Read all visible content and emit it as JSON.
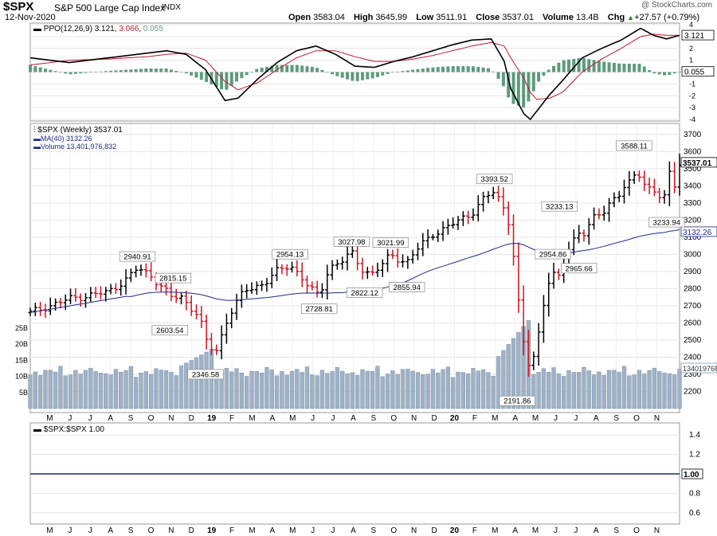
{
  "header": {
    "symbol": "$SPX",
    "name": "S&P 500 Large Cap Index",
    "exchange": "INDX",
    "date": "12-Nov-2020",
    "watermark": "@ StockCharts.com",
    "ohlc": [
      {
        "label": "Open",
        "value": "3583.04"
      },
      {
        "label": "High",
        "value": "3645.99"
      },
      {
        "label": "Low",
        "value": "3511.91"
      },
      {
        "label": "Close",
        "value": "3537.01"
      },
      {
        "label": "Volume",
        "value": "13.4B"
      },
      {
        "label": "Chg",
        "value": "+27.57 (+0.79%)"
      }
    ],
    "chg_icon": "up-triangle-icon"
  },
  "ppo_panel": {
    "legend_name": "PPO(12,26,9)",
    "legend_ppo": "3.121",
    "legend_signal": "3.066",
    "legend_hist": "0.055",
    "colors": {
      "ppo": "#000000",
      "signal": "#c0182e",
      "hist": "#5e9a7d"
    }
  },
  "price_panel": {
    "legend_main": "$SPX (Weekly) 3537.01",
    "legend_ma": "MA(40) 3132.26",
    "legend_volume": "Volume 13,401,976,832",
    "colors": {
      "up_bar": "#000000",
      "down_bar": "#d0131f",
      "ma": "#1f2a8a",
      "volume": "#9fb2c6"
    }
  },
  "ratio_panel": {
    "legend": "$SPX:$SPX 1.00",
    "value_tag": "1.00",
    "axis_ticks": [
      "1.4",
      "1.2",
      "1.0",
      "0.8",
      "0.6"
    ],
    "line_color": "#1f2a5e"
  },
  "x_axis_labels": [
    "M",
    "J",
    "J",
    "A",
    "S",
    "O",
    "N",
    "D",
    "19",
    "F",
    "M",
    "A",
    "M",
    "J",
    "J",
    "A",
    "S",
    "O",
    "N",
    "D",
    "20",
    "F",
    "M",
    "A",
    "M",
    "J",
    "J",
    "A",
    "S",
    "O",
    "N"
  ],
  "chart_data": [
    {
      "type": "line",
      "title": "PPO(12,26,9)",
      "ylim": [
        -4,
        4
      ],
      "y_ticks": [
        "4",
        "3",
        "2",
        "1",
        "0",
        "-1",
        "-2",
        "-3",
        "-4"
      ],
      "value_tags": {
        "ppo": "3.121",
        "hist": "0.055"
      },
      "series": [
        {
          "name": "PPO(12,26,9)",
          "x_pct": [
            0,
            6,
            12,
            18,
            21,
            24,
            27,
            30,
            32,
            35,
            38,
            41,
            44,
            47,
            50,
            53,
            56,
            59,
            62,
            65,
            68,
            71,
            73,
            74,
            76,
            77,
            78,
            80,
            82,
            85,
            88,
            91,
            94,
            96,
            98,
            100
          ],
          "values": [
            1.2,
            0.8,
            1.2,
            1.6,
            1.8,
            1.5,
            0.2,
            -2.4,
            -2.2,
            -0.6,
            0.8,
            1.8,
            2.2,
            1.5,
            0.5,
            0.4,
            0.9,
            1.3,
            1.8,
            2.3,
            2.7,
            2.8,
            0.9,
            -1.4,
            -3.5,
            -4.0,
            -3.3,
            -1.9,
            -0.7,
            1.2,
            2.0,
            2.7,
            3.7,
            3.1,
            2.8,
            3.1
          ]
        },
        {
          "name": "Signal",
          "x_pct": [
            0,
            6,
            12,
            18,
            21,
            24,
            27,
            30,
            32,
            35,
            38,
            41,
            44,
            47,
            50,
            53,
            56,
            59,
            62,
            65,
            68,
            71,
            73,
            74,
            76,
            77,
            78,
            80,
            82,
            85,
            88,
            91,
            94,
            96,
            98,
            100
          ],
          "values": [
            0.6,
            1.0,
            1.1,
            1.3,
            1.5,
            1.6,
            1.0,
            -0.8,
            -1.5,
            -0.9,
            0.2,
            1.2,
            1.8,
            1.8,
            1.3,
            0.9,
            0.9,
            1.1,
            1.4,
            1.8,
            2.2,
            2.5,
            2.2,
            1.2,
            -0.5,
            -1.7,
            -2.3,
            -2.2,
            -1.7,
            0.0,
            1.1,
            2.0,
            3.0,
            3.2,
            3.1,
            3.1
          ]
        }
      ]
    },
    {
      "type": "bar",
      "title": "$SPX (Weekly)",
      "ylim": [
        2100,
        3750
      ],
      "y_ticks": [
        3700,
        3600,
        3500,
        3400,
        3300,
        3200,
        3100,
        3000,
        2900,
        2800,
        2700,
        2600,
        2500,
        2400,
        2300,
        2200
      ],
      "volume_ticks": [
        "25B",
        "20B",
        "15B",
        "10B",
        "5B"
      ],
      "value_tags": {
        "close": "3537.01",
        "ma": "3132.26",
        "volume": "13401976832"
      },
      "annotations": [
        {
          "label": "2940.91",
          "x_pct": 16.5,
          "value": 2940.91
        },
        {
          "label": "2815.15",
          "x_pct": 22.0,
          "value": 2815.15
        },
        {
          "label": "2603.54",
          "x_pct": 21.5,
          "value": 2603.54
        },
        {
          "label": "2346.58",
          "x_pct": 27.0,
          "value": 2346.58
        },
        {
          "label": "2954.13",
          "x_pct": 40.0,
          "value": 2954.13
        },
        {
          "label": "2728.81",
          "x_pct": 44.5,
          "value": 2728.81
        },
        {
          "label": "3027.98",
          "x_pct": 49.5,
          "value": 3027.98
        },
        {
          "label": "2822.12",
          "x_pct": 51.5,
          "value": 2822.12
        },
        {
          "label": "3021.99",
          "x_pct": 55.5,
          "value": 3021.99
        },
        {
          "label": "2855.94",
          "x_pct": 58.0,
          "value": 2855.94
        },
        {
          "label": "3393.52",
          "x_pct": 71.5,
          "value": 3393.52
        },
        {
          "label": "2191.86",
          "x_pct": 75.0,
          "value": 2191.86
        },
        {
          "label": "3233.13",
          "x_pct": 81.5,
          "value": 3233.13
        },
        {
          "label": "2954.86",
          "x_pct": 80.5,
          "value": 2954.86
        },
        {
          "label": "2965.66",
          "x_pct": 84.5,
          "value": 2965.66
        },
        {
          "label": "3588.11",
          "x_pct": 93.0,
          "value": 3588.11
        },
        {
          "label": "3233.94",
          "x_pct": 98.0,
          "value": 3233.94
        }
      ],
      "price_anchors": {
        "x_pct": [
          0,
          3,
          6,
          9,
          12,
          15,
          16.5,
          18.5,
          20.5,
          22,
          23,
          24.5,
          26,
          27,
          28.5,
          30.5,
          33,
          36,
          38,
          40,
          41.5,
          43,
          44.5,
          46,
          48,
          49.5,
          51,
          52.5,
          54,
          55.5,
          56.5,
          58,
          60,
          62,
          64,
          66,
          68,
          70,
          71.5,
          72.5,
          73.5,
          74.5,
          75.5,
          76.5,
          77.5,
          78.5,
          79.5,
          80.5,
          81.5,
          82.5,
          83.5,
          84.5,
          85.5,
          86.5,
          87.5,
          88.5,
          89.5,
          90.5,
          91.5,
          92.5,
          93.5,
          94.5,
          95.5,
          96.5,
          97.5,
          98.5,
          99.5,
          100
        ],
        "close": [
          2660,
          2700,
          2740,
          2760,
          2780,
          2860,
          2920,
          2880,
          2800,
          2740,
          2760,
          2700,
          2640,
          2500,
          2420,
          2640,
          2790,
          2830,
          2900,
          2940,
          2880,
          2800,
          2760,
          2920,
          2960,
          3010,
          2920,
          2880,
          2930,
          3000,
          2980,
          2950,
          3050,
          3120,
          3150,
          3200,
          3240,
          3330,
          3370,
          3300,
          3230,
          2970,
          2600,
          2350,
          2400,
          2580,
          2820,
          2880,
          2860,
          3000,
          3080,
          3130,
          3120,
          3200,
          3230,
          3260,
          3320,
          3340,
          3390,
          3420,
          3490,
          3420,
          3380,
          3360,
          3300,
          3480,
          3380,
          3537
        ]
      },
      "volume_range_B": [
        9,
        28.5
      ]
    },
    {
      "type": "line",
      "title": "$SPX:$SPX",
      "ylim": [
        0.5,
        1.5
      ],
      "series": [
        {
          "name": "$SPX:$SPX",
          "values": [
            1.0,
            1.0
          ]
        }
      ]
    }
  ]
}
